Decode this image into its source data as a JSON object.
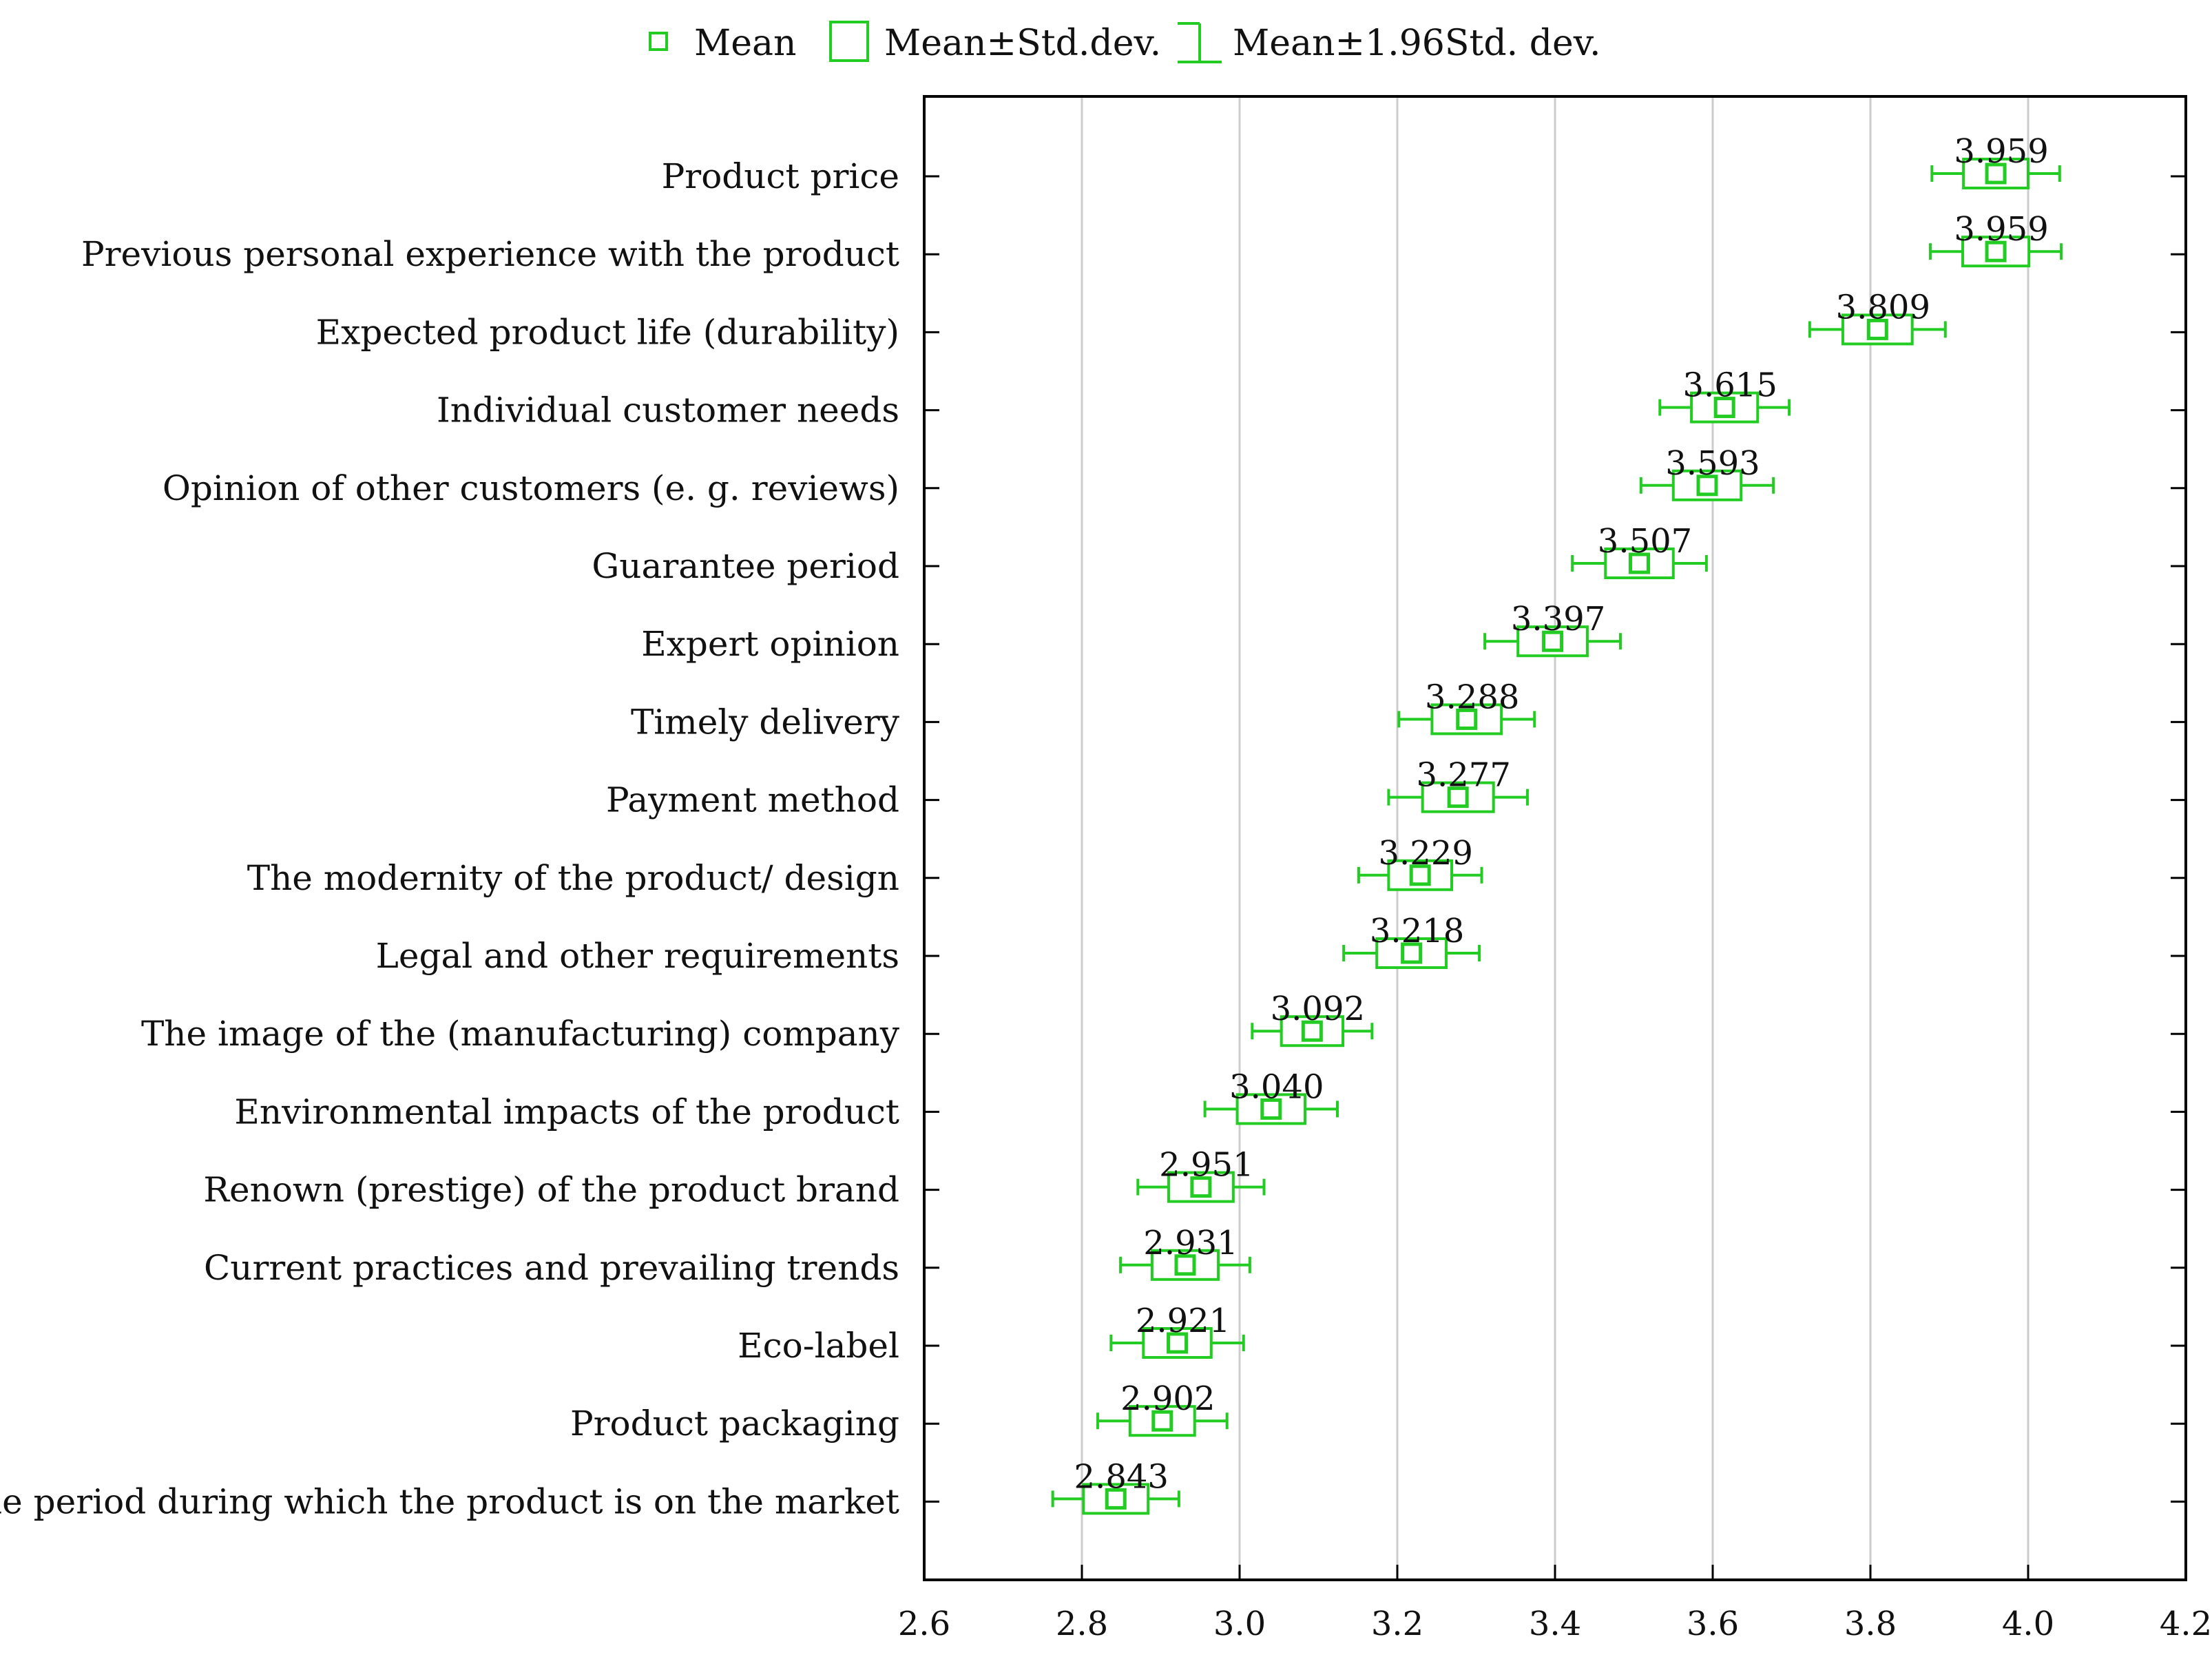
{
  "colors": {
    "series": "#22cc22",
    "axis": "#000000",
    "grid": "#cccccc",
    "text": "#111111"
  },
  "legend": [
    {
      "symbol": "mean-square",
      "label": "Mean"
    },
    {
      "symbol": "box",
      "label": "Mean±Std.dev."
    },
    {
      "symbol": "whisker",
      "label": "Mean±1.96Std. dev."
    }
  ],
  "chart_data": {
    "type": "box",
    "orientation": "horizontal",
    "title": "",
    "xlabel": "",
    "ylabel": "",
    "xlim": [
      2.6,
      4.2
    ],
    "x_ticks": [
      2.6,
      2.8,
      3.0,
      3.2,
      3.4,
      3.6,
      3.8,
      4.0,
      4.2
    ],
    "x_tick_labels": [
      "2.6",
      "2.8",
      "3.0",
      "3.2",
      "3.4",
      "3.6",
      "3.8",
      "4.0",
      "4.2"
    ],
    "grid": "vertical",
    "legend_position": "top",
    "series": [
      {
        "category": "Product price",
        "mean": 3.959,
        "label": "3.959",
        "sd_low": 3.918,
        "sd_high": 4.0,
        "ci_low": 3.878,
        "ci_high": 4.04
      },
      {
        "category": "Previous personal experience with the product",
        "mean": 3.959,
        "label": "3.959",
        "sd_low": 3.917,
        "sd_high": 4.001,
        "ci_low": 3.876,
        "ci_high": 4.042
      },
      {
        "category": "Expected product life (durability)",
        "mean": 3.809,
        "label": "3.809",
        "sd_low": 3.765,
        "sd_high": 3.853,
        "ci_low": 3.723,
        "ci_high": 3.895
      },
      {
        "category": "Individual customer needs",
        "mean": 3.615,
        "label": "3.615",
        "sd_low": 3.573,
        "sd_high": 3.657,
        "ci_low": 3.533,
        "ci_high": 3.697
      },
      {
        "category": "Opinion of other customers (e. g. reviews)",
        "mean": 3.593,
        "label": "3.593",
        "sd_low": 3.55,
        "sd_high": 3.636,
        "ci_low": 3.509,
        "ci_high": 3.677
      },
      {
        "category": "Guarantee period",
        "mean": 3.507,
        "label": "3.507",
        "sd_low": 3.464,
        "sd_high": 3.55,
        "ci_low": 3.422,
        "ci_high": 3.592
      },
      {
        "category": "Expert opinion",
        "mean": 3.397,
        "label": "3.397",
        "sd_low": 3.353,
        "sd_high": 3.441,
        "ci_low": 3.311,
        "ci_high": 3.483
      },
      {
        "category": "Timely delivery",
        "mean": 3.288,
        "label": "3.288",
        "sd_low": 3.244,
        "sd_high": 3.332,
        "ci_low": 3.202,
        "ci_high": 3.374
      },
      {
        "category": "Payment method",
        "mean": 3.277,
        "label": "3.277",
        "sd_low": 3.232,
        "sd_high": 3.322,
        "ci_low": 3.189,
        "ci_high": 3.365
      },
      {
        "category": "The modernity of the product/ design",
        "mean": 3.229,
        "label": "3.229",
        "sd_low": 3.189,
        "sd_high": 3.269,
        "ci_low": 3.151,
        "ci_high": 3.307
      },
      {
        "category": "Legal and other requirements",
        "mean": 3.218,
        "label": "3.218",
        "sd_low": 3.174,
        "sd_high": 3.262,
        "ci_low": 3.132,
        "ci_high": 3.304
      },
      {
        "category": "The image of the (manufacturing) company",
        "mean": 3.092,
        "label": "3.092",
        "sd_low": 3.053,
        "sd_high": 3.131,
        "ci_low": 3.016,
        "ci_high": 3.168
      },
      {
        "category": "Environmental impacts of the product",
        "mean": 3.04,
        "label": "3.040",
        "sd_low": 2.997,
        "sd_high": 3.083,
        "ci_low": 2.956,
        "ci_high": 3.124
      },
      {
        "category": "Renown (prestige) of the product brand",
        "mean": 2.951,
        "label": "2.951",
        "sd_low": 2.91,
        "sd_high": 2.992,
        "ci_low": 2.871,
        "ci_high": 3.031
      },
      {
        "category": "Current practices and prevailing trends",
        "mean": 2.931,
        "label": "2.931",
        "sd_low": 2.889,
        "sd_high": 2.973,
        "ci_low": 2.849,
        "ci_high": 3.013
      },
      {
        "category": "Eco-label",
        "mean": 2.921,
        "label": "2.921",
        "sd_low": 2.878,
        "sd_high": 2.964,
        "ci_low": 2.837,
        "ci_high": 3.005
      },
      {
        "category": "Product packaging",
        "mean": 2.902,
        "label": "2.902",
        "sd_low": 2.861,
        "sd_high": 2.943,
        "ci_low": 2.82,
        "ci_high": 2.984
      },
      {
        "category": "The period during which the product is on the market",
        "mean": 2.843,
        "label": "2.843",
        "sd_low": 2.802,
        "sd_high": 2.884,
        "ci_low": 2.763,
        "ci_high": 2.923
      }
    ]
  }
}
